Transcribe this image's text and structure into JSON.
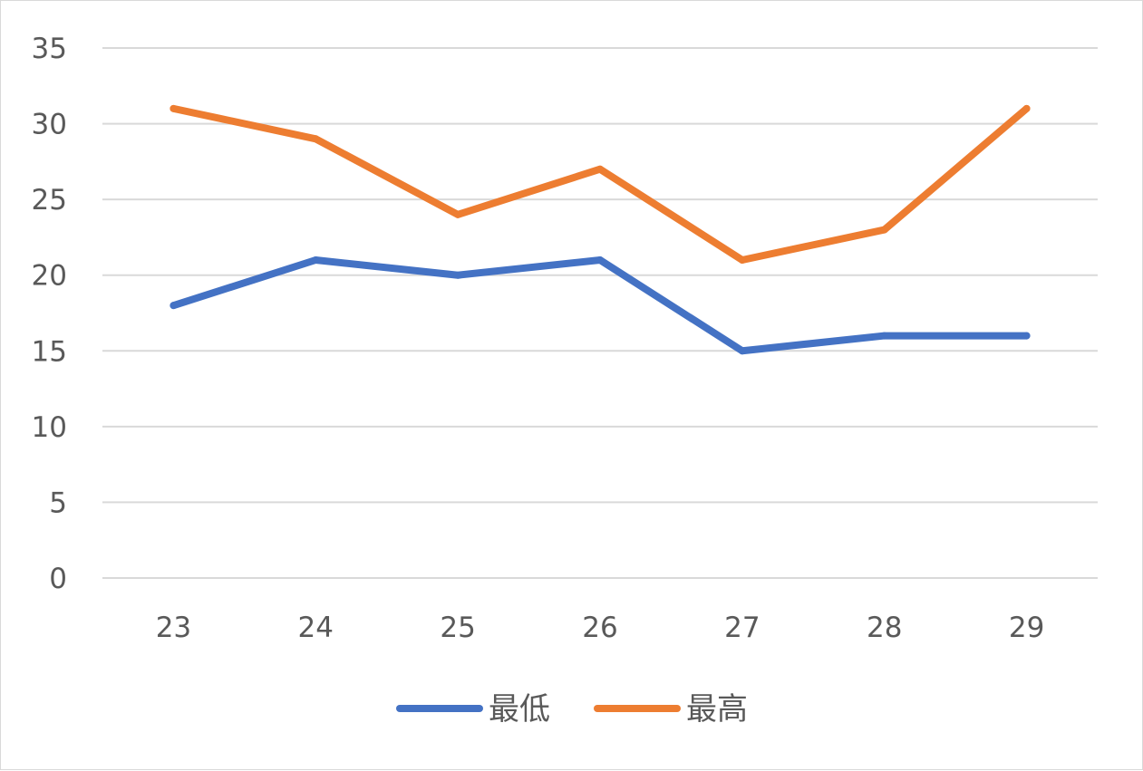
{
  "chart_data": {
    "type": "line",
    "title": "",
    "xlabel": "",
    "ylabel": "",
    "x": [
      "23",
      "24",
      "25",
      "26",
      "27",
      "28",
      "29"
    ],
    "ylim": [
      0,
      35
    ],
    "yticks": [
      "0",
      "5",
      "10",
      "15",
      "20",
      "25",
      "30",
      "35"
    ],
    "grid": true,
    "legend_position": "bottom",
    "series": [
      {
        "name": "最低",
        "color": "#4472c4",
        "values": [
          18,
          21,
          20,
          21,
          15,
          16,
          16
        ]
      },
      {
        "name": "最高",
        "color": "#ed7d31",
        "values": [
          31,
          29,
          24,
          27,
          21,
          23,
          31
        ]
      }
    ]
  }
}
